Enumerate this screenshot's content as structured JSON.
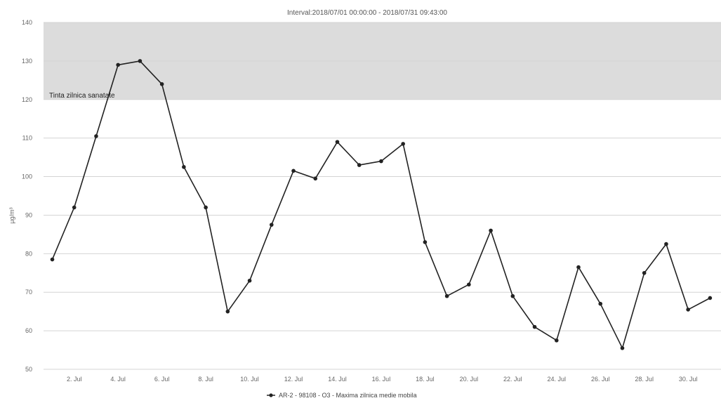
{
  "chart_data": {
    "type": "line",
    "title": "Interval:2018/07/01 00:00:00 - 2018/07/31 09:43:00",
    "ylabel": "µg/m³",
    "xlabel": "",
    "ylim": [
      50,
      140
    ],
    "ytick_values": [
      50,
      60,
      70,
      80,
      90,
      100,
      110,
      120,
      130,
      140
    ],
    "ytick_labels": [
      "50",
      "60",
      "70",
      "80",
      "90",
      "100",
      "110",
      "120",
      "130",
      "140"
    ],
    "xtick_labels": [
      "2. Jul",
      "4. Jul",
      "6. Jul",
      "8. Jul",
      "10. Jul",
      "12. Jul",
      "14. Jul",
      "16. Jul",
      "18. Jul",
      "20. Jul",
      "22. Jul",
      "24. Jul",
      "26. Jul",
      "28. Jul",
      "30. Jul"
    ],
    "xtick_days": [
      2,
      4,
      6,
      8,
      10,
      12,
      14,
      16,
      18,
      20,
      22,
      24,
      26,
      28,
      30
    ],
    "band": {
      "from": 120,
      "to": 140,
      "label": "Tinta zilnica sanatate",
      "color": "#dcdcdc"
    },
    "grid": true,
    "legend_position": "bottom",
    "series": [
      {
        "name": "AR-2 - 98108 - O3 - Maxima zilnica medie mobila",
        "color": "#222222",
        "x": [
          "1. Jul",
          "2. Jul",
          "3. Jul",
          "4. Jul",
          "5. Jul",
          "6. Jul",
          "7. Jul",
          "8. Jul",
          "9. Jul",
          "10. Jul",
          "11. Jul",
          "12. Jul",
          "13. Jul",
          "14. Jul",
          "15. Jul",
          "16. Jul",
          "17. Jul",
          "18. Jul",
          "19. Jul",
          "20. Jul",
          "21. Jul",
          "22. Jul",
          "23. Jul",
          "24. Jul",
          "25. Jul",
          "26. Jul",
          "27. Jul",
          "28. Jul",
          "29. Jul",
          "30. Jul",
          "31. Jul"
        ],
        "days": [
          1,
          2,
          3,
          4,
          5,
          6,
          7,
          8,
          9,
          10,
          11,
          12,
          13,
          14,
          15,
          16,
          17,
          18,
          19,
          20,
          21,
          22,
          23,
          24,
          25,
          26,
          27,
          28,
          29,
          30,
          31
        ],
        "values": [
          78.5,
          92,
          110.5,
          129,
          130,
          124,
          102.5,
          92,
          65,
          73,
          87.5,
          101.5,
          99.5,
          109,
          103,
          104,
          108.5,
          83,
          69,
          72,
          86,
          69,
          61,
          57.5,
          76.5,
          67,
          55.5,
          75,
          82.5,
          65.5,
          68.5
        ]
      }
    ]
  }
}
